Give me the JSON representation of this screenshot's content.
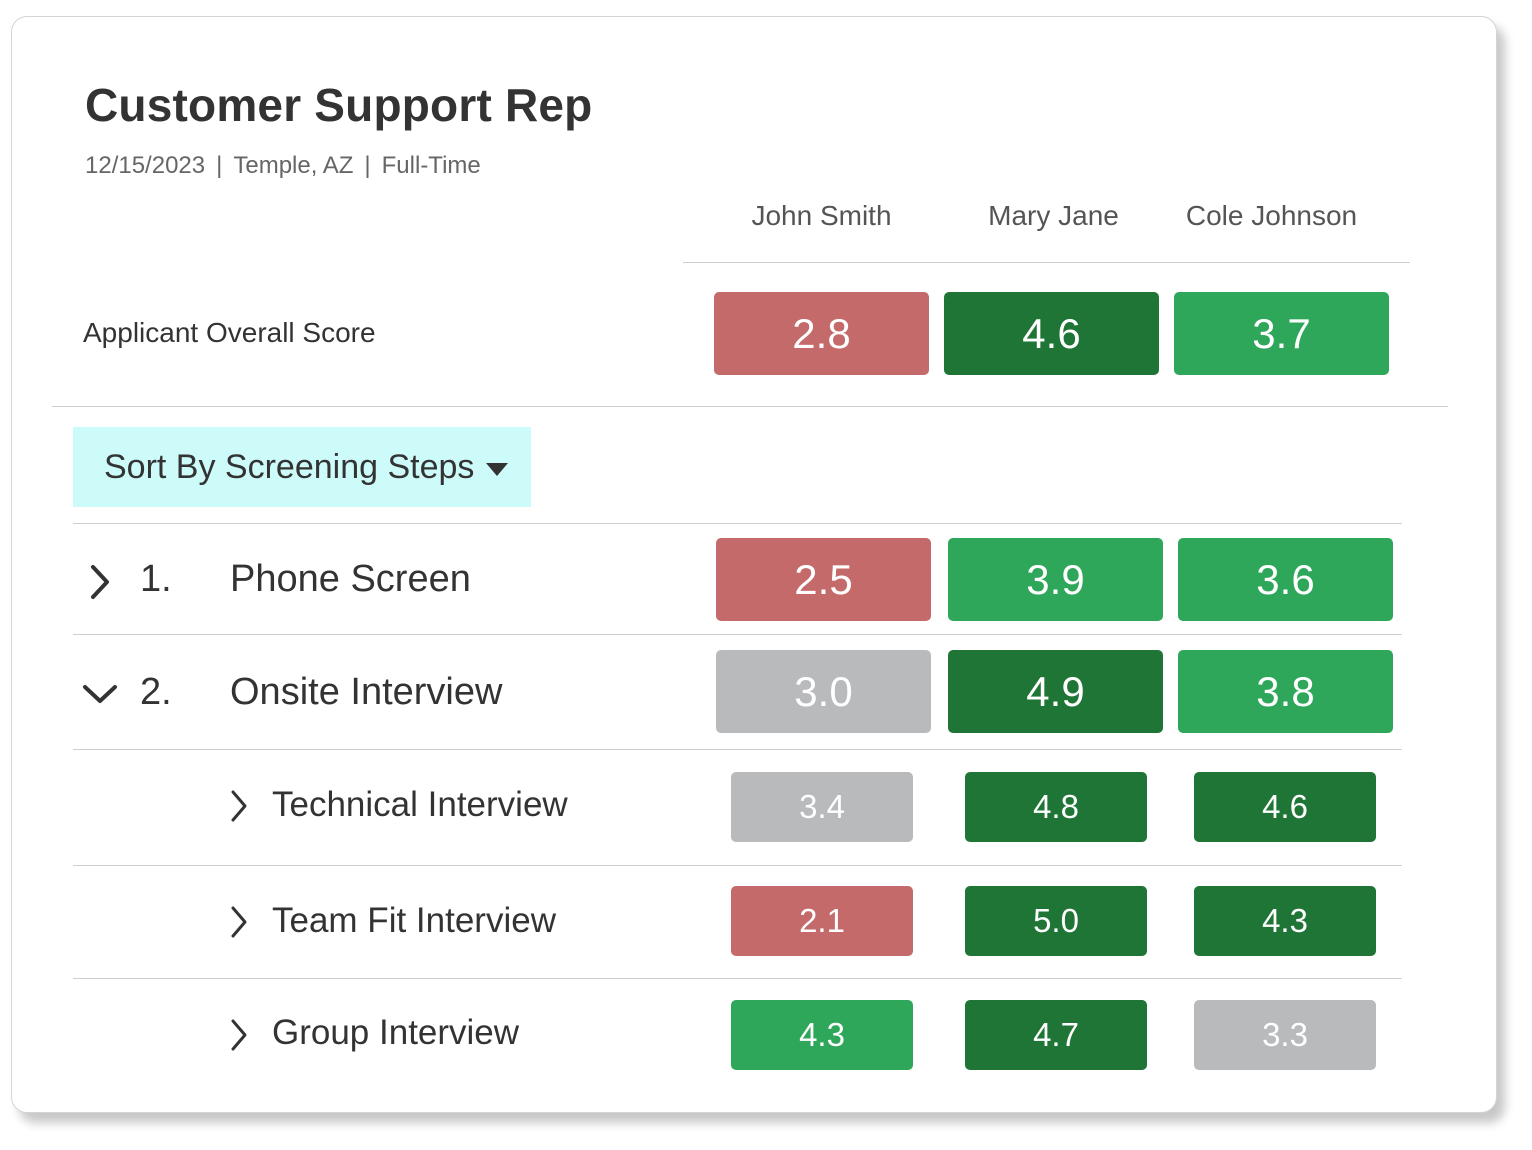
{
  "job": {
    "title": "Customer Support Rep",
    "date": "12/15/2023",
    "location": "Temple, AZ",
    "type": "Full-Time",
    "separator": "|"
  },
  "applicants": [
    "John Smith",
    "Mary Jane",
    "Cole Johnson"
  ],
  "overall": {
    "label": "Applicant Overall Score",
    "scores": [
      "2.8",
      "4.6",
      "3.7"
    ],
    "colors": [
      "red",
      "dark",
      "green"
    ]
  },
  "sort": {
    "label": "Sort By Screening Steps",
    "icon": "caret-down-icon"
  },
  "steps": [
    {
      "number": "1.",
      "label": "Phone Screen",
      "expanded": false,
      "scores": [
        "2.5",
        "3.9",
        "3.6"
      ],
      "colors": [
        "red",
        "green",
        "green"
      ]
    },
    {
      "number": "2.",
      "label": "Onsite Interview",
      "expanded": true,
      "scores": [
        "3.0",
        "4.9",
        "3.8"
      ],
      "colors": [
        "gray",
        "dark",
        "green"
      ],
      "substeps": [
        {
          "label": "Technical Interview",
          "scores": [
            "3.4",
            "4.8",
            "4.6"
          ],
          "colors": [
            "gray",
            "dark",
            "dark"
          ]
        },
        {
          "label": "Team Fit Interview",
          "scores": [
            "2.1",
            "5.0",
            "4.3"
          ],
          "colors": [
            "red",
            "dark",
            "dark"
          ]
        },
        {
          "label": "Group Interview",
          "scores": [
            "4.3",
            "4.7",
            "3.3"
          ],
          "colors": [
            "green",
            "dark",
            "gray"
          ]
        }
      ]
    }
  ],
  "palette": {
    "red": "#c46a6a",
    "dark": "#1f7535",
    "green": "#2fa75b",
    "gray": "#b9babc",
    "sort_bg": "#ccfbfa"
  }
}
